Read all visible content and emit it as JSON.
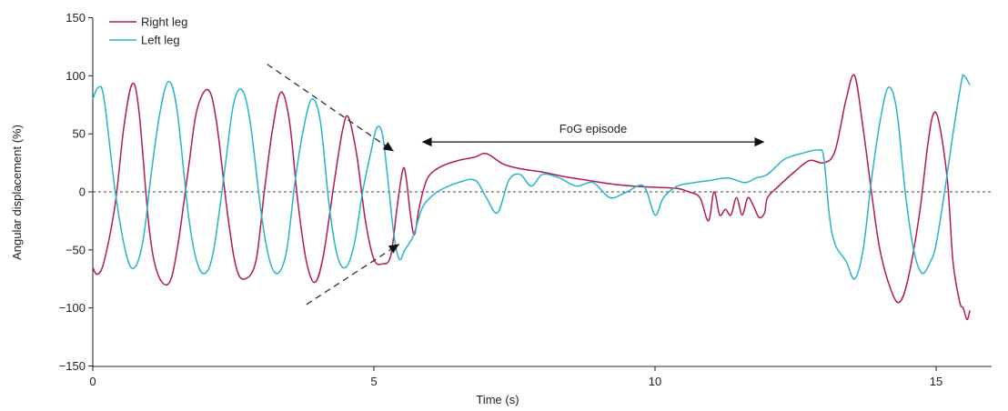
{
  "chart_data": {
    "type": "line",
    "title": "",
    "xlabel": "Time (s)",
    "ylabel": "Angular displacement (%)",
    "xlim": [
      0,
      16.3
    ],
    "ylim": [
      -150,
      150
    ],
    "xticks": [
      0,
      5,
      10,
      15
    ],
    "yticks": [
      150,
      100,
      50,
      0,
      -50,
      -100,
      -150
    ],
    "grid": false,
    "legend_position": "top-left",
    "zero_line": true,
    "series": [
      {
        "name": "Right leg",
        "color": "#b2195a",
        "points": [
          [
            0.0,
            -65
          ],
          [
            0.08,
            -71
          ],
          [
            0.2,
            -60
          ],
          [
            0.4,
            -10
          ],
          [
            0.55,
            55
          ],
          [
            0.7,
            93
          ],
          [
            0.82,
            70
          ],
          [
            1.0,
            -30
          ],
          [
            1.15,
            -70
          ],
          [
            1.35,
            -79
          ],
          [
            1.5,
            -50
          ],
          [
            1.7,
            20
          ],
          [
            1.85,
            70
          ],
          [
            2.05,
            88
          ],
          [
            2.2,
            60
          ],
          [
            2.4,
            -20
          ],
          [
            2.55,
            -65
          ],
          [
            2.7,
            -75
          ],
          [
            2.9,
            -60
          ],
          [
            3.05,
            0
          ],
          [
            3.2,
            55
          ],
          [
            3.35,
            86
          ],
          [
            3.5,
            60
          ],
          [
            3.65,
            -10
          ],
          [
            3.8,
            -60
          ],
          [
            3.95,
            -78
          ],
          [
            4.1,
            -55
          ],
          [
            4.3,
            10
          ],
          [
            4.45,
            55
          ],
          [
            4.55,
            64
          ],
          [
            4.7,
            30
          ],
          [
            4.85,
            -25
          ],
          [
            5.0,
            -58
          ],
          [
            5.15,
            -62
          ],
          [
            5.3,
            -55
          ],
          [
            5.42,
            -10
          ],
          [
            5.52,
            20
          ],
          [
            5.58,
            10
          ],
          [
            5.65,
            -20
          ],
          [
            5.72,
            -37
          ],
          [
            5.8,
            -15
          ],
          [
            5.9,
            5
          ],
          [
            6.0,
            15
          ],
          [
            6.2,
            22
          ],
          [
            6.5,
            27
          ],
          [
            6.8,
            30
          ],
          [
            7.0,
            33
          ],
          [
            7.3,
            24
          ],
          [
            7.6,
            20
          ],
          [
            8.0,
            17
          ],
          [
            8.4,
            13
          ],
          [
            8.8,
            10
          ],
          [
            9.2,
            7
          ],
          [
            9.6,
            5
          ],
          [
            10.0,
            4
          ],
          [
            10.4,
            3
          ],
          [
            10.6,
            0
          ],
          [
            10.8,
            -5
          ],
          [
            10.95,
            -25
          ],
          [
            11.05,
            0
          ],
          [
            11.15,
            -20
          ],
          [
            11.25,
            -15
          ],
          [
            11.35,
            -20
          ],
          [
            11.45,
            -5
          ],
          [
            11.55,
            -20
          ],
          [
            11.65,
            -5
          ],
          [
            11.75,
            -12
          ],
          [
            11.85,
            -22
          ],
          [
            11.95,
            -18
          ],
          [
            12.0,
            -5
          ],
          [
            12.2,
            5
          ],
          [
            12.5,
            18
          ],
          [
            12.75,
            27
          ],
          [
            13.0,
            25
          ],
          [
            13.2,
            35
          ],
          [
            13.4,
            80
          ],
          [
            13.55,
            100
          ],
          [
            13.7,
            55
          ],
          [
            13.85,
            0
          ],
          [
            14.0,
            -50
          ],
          [
            14.2,
            -85
          ],
          [
            14.35,
            -95
          ],
          [
            14.5,
            -75
          ],
          [
            14.7,
            -20
          ],
          [
            14.85,
            40
          ],
          [
            14.95,
            67
          ],
          [
            15.05,
            60
          ],
          [
            15.2,
            10
          ],
          [
            15.3,
            -60
          ],
          [
            15.42,
            -95
          ],
          [
            15.48,
            -100
          ],
          [
            15.55,
            -110
          ],
          [
            15.6,
            -102
          ]
        ]
      },
      {
        "name": "Left leg",
        "color": "#26b5c8",
        "points": [
          [
            0.0,
            80
          ],
          [
            0.1,
            90
          ],
          [
            0.2,
            80
          ],
          [
            0.4,
            0
          ],
          [
            0.6,
            -55
          ],
          [
            0.75,
            -65
          ],
          [
            0.9,
            -40
          ],
          [
            1.05,
            20
          ],
          [
            1.2,
            70
          ],
          [
            1.35,
            95
          ],
          [
            1.5,
            70
          ],
          [
            1.7,
            -20
          ],
          [
            1.85,
            -60
          ],
          [
            2.0,
            -70
          ],
          [
            2.15,
            -50
          ],
          [
            2.35,
            20
          ],
          [
            2.5,
            75
          ],
          [
            2.65,
            88
          ],
          [
            2.8,
            60
          ],
          [
            3.0,
            -20
          ],
          [
            3.15,
            -60
          ],
          [
            3.3,
            -70
          ],
          [
            3.45,
            -50
          ],
          [
            3.6,
            10
          ],
          [
            3.75,
            55
          ],
          [
            3.9,
            80
          ],
          [
            4.05,
            60
          ],
          [
            4.2,
            -10
          ],
          [
            4.35,
            -55
          ],
          [
            4.5,
            -65
          ],
          [
            4.65,
            -45
          ],
          [
            4.8,
            0
          ],
          [
            4.95,
            35
          ],
          [
            5.05,
            55
          ],
          [
            5.15,
            50
          ],
          [
            5.25,
            10
          ],
          [
            5.35,
            -35
          ],
          [
            5.45,
            -58
          ],
          [
            5.55,
            -50
          ],
          [
            5.7,
            -38
          ],
          [
            5.85,
            -15
          ],
          [
            6.0,
            -5
          ],
          [
            6.2,
            2
          ],
          [
            6.5,
            8
          ],
          [
            6.8,
            10
          ],
          [
            7.0,
            -5
          ],
          [
            7.2,
            -18
          ],
          [
            7.4,
            10
          ],
          [
            7.6,
            15
          ],
          [
            7.8,
            5
          ],
          [
            8.0,
            15
          ],
          [
            8.3,
            12
          ],
          [
            8.6,
            5
          ],
          [
            8.9,
            8
          ],
          [
            9.2,
            -5
          ],
          [
            9.5,
            0
          ],
          [
            9.8,
            5
          ],
          [
            10.0,
            -20
          ],
          [
            10.15,
            -5
          ],
          [
            10.4,
            5
          ],
          [
            10.7,
            8
          ],
          [
            11.0,
            10
          ],
          [
            11.3,
            12
          ],
          [
            11.6,
            8
          ],
          [
            11.8,
            12
          ],
          [
            12.0,
            15
          ],
          [
            12.3,
            28
          ],
          [
            12.6,
            33
          ],
          [
            12.9,
            36
          ],
          [
            13.0,
            30
          ],
          [
            13.1,
            -20
          ],
          [
            13.2,
            -45
          ],
          [
            13.4,
            -60
          ],
          [
            13.55,
            -75
          ],
          [
            13.7,
            -50
          ],
          [
            13.85,
            10
          ],
          [
            14.0,
            60
          ],
          [
            14.15,
            90
          ],
          [
            14.3,
            70
          ],
          [
            14.45,
            0
          ],
          [
            14.6,
            -50
          ],
          [
            14.75,
            -70
          ],
          [
            14.9,
            -60
          ],
          [
            15.0,
            -45
          ],
          [
            15.15,
            0
          ],
          [
            15.3,
            50
          ],
          [
            15.45,
            95
          ],
          [
            15.5,
            100
          ],
          [
            15.6,
            92
          ]
        ]
      }
    ],
    "annotations": [
      {
        "type": "double-arrow",
        "label": "FoG episode",
        "x_start": 5.85,
        "x_end": 11.95,
        "y": 43
      },
      {
        "type": "dashed-line",
        "from": [
          3.1,
          110
        ],
        "to": [
          5.35,
          35
        ]
      },
      {
        "type": "dashed-line",
        "from": [
          3.8,
          -97
        ],
        "to": [
          5.45,
          -45
        ]
      }
    ]
  }
}
